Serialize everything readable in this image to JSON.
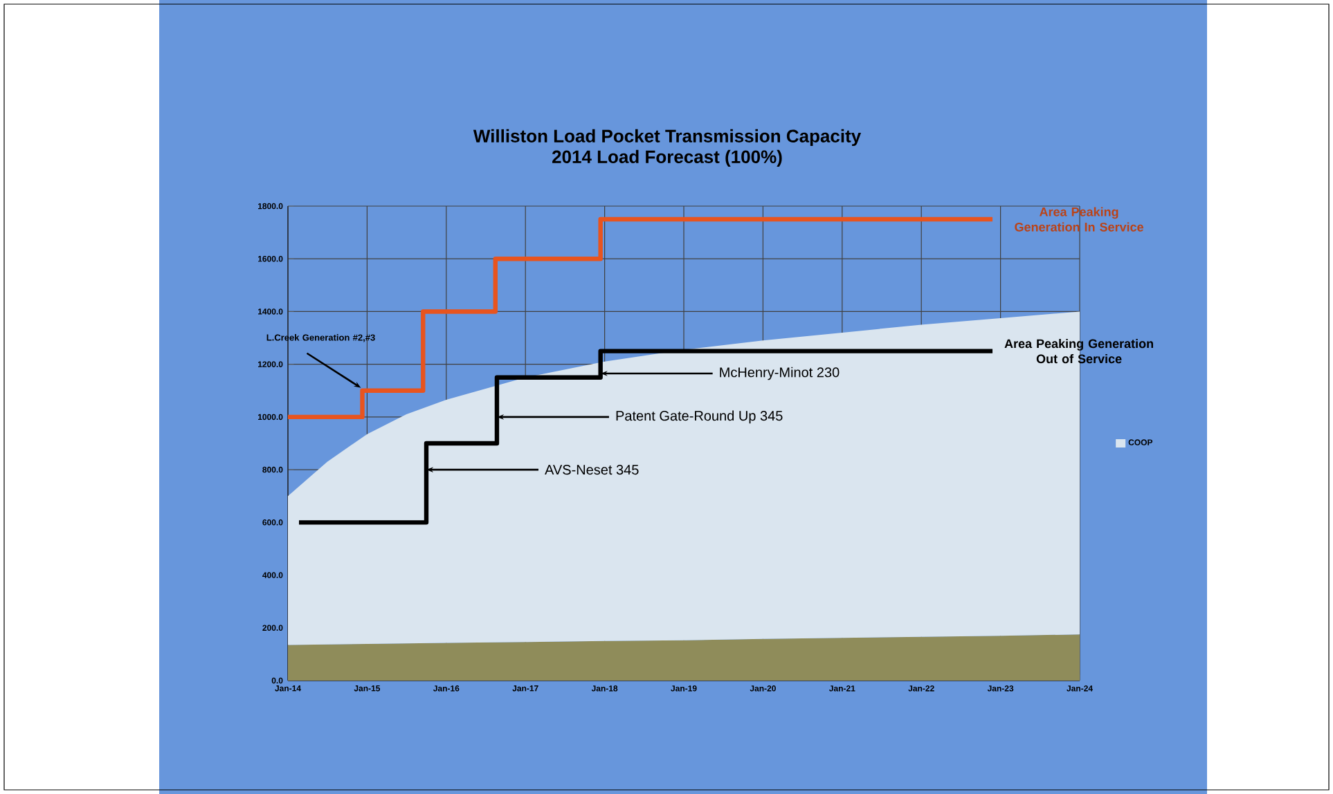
{
  "chart_data": {
    "type": "area",
    "title": "Williston Load Pocket Transmission Capacity",
    "subtitle": "2014 Load Forecast (100%)",
    "stacked": true,
    "grid": true,
    "legend": "right",
    "xlim": [
      "2014-01-01",
      "2024-01-01"
    ],
    "xticks": [
      {
        "value": "2014-01-01",
        "label": "Jan-14"
      },
      {
        "value": "2015-01-01",
        "label": "Jan-15"
      },
      {
        "value": "2016-01-01",
        "label": "Jan-16"
      },
      {
        "value": "2017-01-01",
        "label": "Jan-17"
      },
      {
        "value": "2018-01-01",
        "label": "Jan-18"
      },
      {
        "value": "2019-01-01",
        "label": "Jan-19"
      },
      {
        "value": "2020-01-01",
        "label": "Jan-20"
      },
      {
        "value": "2021-01-01",
        "label": "Jan-21"
      },
      {
        "value": "2022-01-01",
        "label": "Jan-22"
      },
      {
        "value": "2023-01-01",
        "label": "Jan-23"
      },
      {
        "value": "2024-01-01",
        "label": "Jan-24"
      }
    ],
    "ylim": [
      0,
      1800
    ],
    "yticks": [
      {
        "value": 0,
        "label": "0.0"
      },
      {
        "value": 200,
        "label": "200.0"
      },
      {
        "value": 400,
        "label": "400.0"
      },
      {
        "value": 600,
        "label": "600.0"
      },
      {
        "value": 800,
        "label": "800.0"
      },
      {
        "value": 1000,
        "label": "1000.0"
      },
      {
        "value": 1200,
        "label": "1200.0"
      },
      {
        "value": 1400,
        "label": "1400.0"
      },
      {
        "value": 1600,
        "label": "1600.0"
      },
      {
        "value": 1800,
        "label": "1800.0"
      }
    ],
    "x": [
      "2014-01-01",
      "2014-07-01",
      "2015-01-01",
      "2015-07-01",
      "2016-01-01",
      "2017-01-01",
      "2018-01-01",
      "2019-01-01",
      "2020-01-01",
      "2021-01-01",
      "2022-01-01",
      "2023-01-01",
      "2024-01-01"
    ],
    "series": [
      {
        "color": "#8f8c5a",
        "values": [
          135,
          137,
          139,
          141,
          143,
          146,
          150,
          153,
          158,
          162,
          166,
          170,
          175
        ]
      },
      {
        "name": "COOP",
        "color": "#dae5ef",
        "values": [
          565,
          693,
          796,
          869,
          922,
          1004,
          1060,
          1102,
          1132,
          1158,
          1184,
          1205,
          1225
        ]
      },
      {
        "name": "Area Peaking Generation In Service",
        "type": "step",
        "color": "#e8541e",
        "x": [
          "2014-01-01",
          "2014-12-10",
          "2015-09-16",
          "2016-08-15",
          "2017-12-13",
          "2022-11-25"
        ],
        "values": [
          1000,
          1100,
          1400,
          1600,
          1750,
          1750
        ]
      },
      {
        "name": "Area Peaking Generation Out of Service",
        "type": "step",
        "color": "#000000",
        "x": [
          "2014-02-21",
          "2015-10-01",
          "2016-08-22",
          "2017-12-13",
          "2022-11-25"
        ],
        "values": [
          600,
          900,
          1150,
          1250,
          1250
        ]
      }
    ],
    "annotations": [
      {
        "text": "L.Creek Generation #2,#3",
        "x": "2014-12-10",
        "y": 1100
      },
      {
        "text": "McHenry-Minot 230",
        "x": "2017-12-13",
        "y": 1165
      },
      {
        "text": "Patent Gate-Round Up 345",
        "x": "2016-08-22",
        "y": 1000
      },
      {
        "text": "AVS-Neset 345",
        "x": "2015-10-01",
        "y": 800
      }
    ]
  }
}
